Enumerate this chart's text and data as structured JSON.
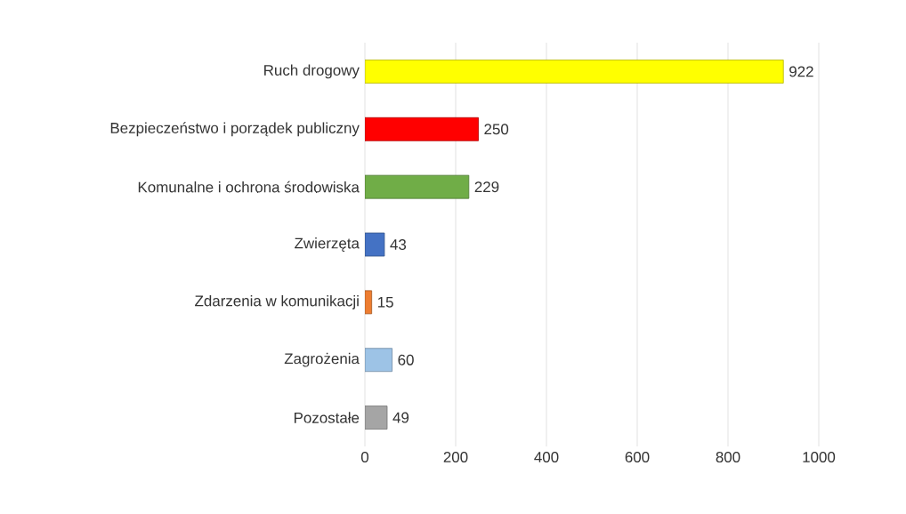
{
  "chart_data": {
    "type": "bar",
    "orientation": "horizontal",
    "categories": [
      "Ruch drogowy",
      "Bezpieczeństwo i porządek publiczny",
      "Komunalne i ochrona środowiska",
      "Zwierzęta",
      "Zdarzenia w komunikacji",
      "Zagrożenia",
      "Pozostałe"
    ],
    "values": [
      922,
      250,
      229,
      43,
      15,
      60,
      49
    ],
    "colors": [
      "#ffff00",
      "#ff0000",
      "#70ad47",
      "#4472c4",
      "#ed7d31",
      "#9dc3e6",
      "#a5a5a5"
    ],
    "xlim": [
      0,
      1000
    ],
    "xticks": [
      0,
      200,
      400,
      600,
      800,
      1000
    ],
    "grid": "x",
    "data_labels": true
  }
}
